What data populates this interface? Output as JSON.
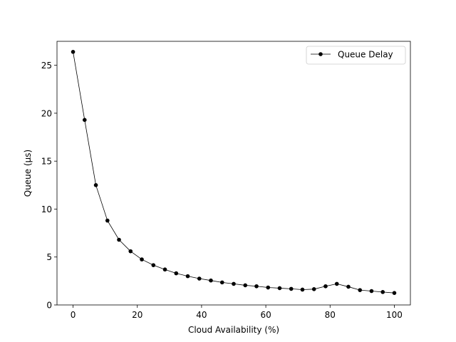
{
  "chart_data": {
    "type": "line",
    "title": "",
    "xlabel": "Cloud Availability (%)",
    "ylabel": "Queue (µs)",
    "xlim": [
      -5,
      105
    ],
    "ylim": [
      0,
      27.5
    ],
    "xticks": [
      0,
      20,
      40,
      60,
      80,
      100
    ],
    "yticks": [
      0,
      5,
      10,
      15,
      20,
      25
    ],
    "grid": false,
    "legend_position": "top-right",
    "series": [
      {
        "name": "Queue Delay",
        "color": "#000000",
        "marker": "circle",
        "x": [
          0,
          3.6,
          7.1,
          10.7,
          14.3,
          17.9,
          21.4,
          25.0,
          28.6,
          32.1,
          35.7,
          39.3,
          42.9,
          46.4,
          50.0,
          53.6,
          57.1,
          60.7,
          64.3,
          67.9,
          71.4,
          75.0,
          78.6,
          82.1,
          85.7,
          89.3,
          92.9,
          96.4,
          100
        ],
        "y": [
          26.4,
          19.3,
          12.5,
          8.8,
          6.8,
          5.6,
          4.75,
          4.15,
          3.7,
          3.3,
          3.0,
          2.75,
          2.55,
          2.35,
          2.2,
          2.05,
          1.95,
          1.82,
          1.75,
          1.68,
          1.6,
          1.65,
          1.95,
          2.2,
          1.9,
          1.55,
          1.45,
          1.35,
          1.25
        ]
      }
    ]
  }
}
